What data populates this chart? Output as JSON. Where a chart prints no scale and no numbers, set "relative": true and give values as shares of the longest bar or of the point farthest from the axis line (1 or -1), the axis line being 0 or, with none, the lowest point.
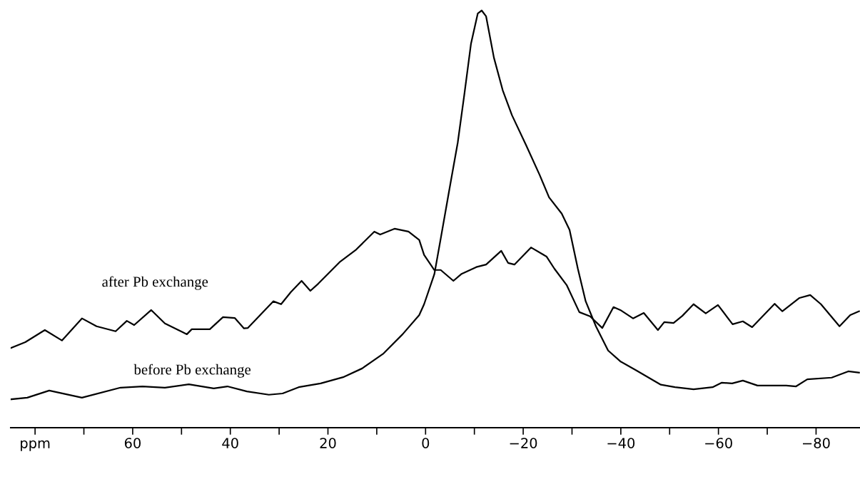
{
  "chart_data": {
    "type": "line",
    "relative": true,
    "tick_labels": "x",
    "grid": false,
    "legend": false,
    "marker": "none",
    "line_style": "solid",
    "xlim": [
      85,
      -89
    ],
    "xticks": [
      {
        "value": 80,
        "label": "ppm"
      },
      {
        "value": 70,
        "label": null
      },
      60,
      {
        "value": 50,
        "label": null
      },
      40,
      {
        "value": 30,
        "label": null
      },
      20,
      {
        "value": 10,
        "label": null
      },
      0,
      {
        "value": -10,
        "label": null
      },
      {
        "value": -20,
        "label": "−20"
      },
      {
        "value": -30,
        "label": null
      },
      {
        "value": -40,
        "label": "−40"
      },
      {
        "value": -50,
        "label": null
      },
      {
        "value": -60,
        "label": "−60"
      },
      {
        "value": -70,
        "label": null
      },
      {
        "value": -80,
        "label": "−80"
      }
    ],
    "series": [
      {
        "name": "after Pb exchange",
        "color": "#000000",
        "x": [
          85.0,
          82.0,
          78.0,
          74.5,
          70.4,
          67.4,
          63.5,
          61.2,
          59.7,
          56.2,
          53.4,
          48.9,
          47.9,
          44.2,
          41.5,
          39.1,
          37.2,
          36.4,
          31.2,
          29.6,
          27.6,
          25.4,
          23.6,
          22.0,
          17.5,
          14.2,
          10.5,
          9.3,
          6.3,
          3.5,
          1.3,
          0.3,
          -1.8,
          -3.1,
          -5.7,
          -7.3,
          -10.4,
          -12.4,
          -15.5,
          -16.9,
          -18.2,
          -21.6,
          -24.8,
          -26.4,
          -28.9,
          -31.5,
          -33.7,
          -36.2,
          -38.5,
          -39.9,
          -42.5,
          -44.7,
          -47.6,
          -48.9,
          -50.8,
          -52.6,
          -54.9,
          -57.4,
          -59.9,
          -62.9,
          -65.0,
          -66.9,
          -71.5,
          -73.1,
          -76.6,
          -78.8,
          -81.0,
          -84.8,
          -87.0,
          -88.8
        ],
        "values": [
          0.191,
          0.205,
          0.234,
          0.209,
          0.262,
          0.243,
          0.231,
          0.256,
          0.246,
          0.282,
          0.25,
          0.224,
          0.236,
          0.236,
          0.265,
          0.263,
          0.238,
          0.239,
          0.303,
          0.296,
          0.325,
          0.352,
          0.328,
          0.345,
          0.398,
          0.427,
          0.47,
          0.463,
          0.477,
          0.47,
          0.45,
          0.414,
          0.378,
          0.378,
          0.352,
          0.368,
          0.385,
          0.391,
          0.424,
          0.395,
          0.391,
          0.432,
          0.41,
          0.381,
          0.342,
          0.277,
          0.267,
          0.239,
          0.289,
          0.282,
          0.262,
          0.275,
          0.234,
          0.253,
          0.251,
          0.268,
          0.296,
          0.274,
          0.294,
          0.248,
          0.255,
          0.241,
          0.297,
          0.279,
          0.311,
          0.318,
          0.296,
          0.243,
          0.27,
          0.279
        ]
      },
      {
        "name": "before Pb exchange",
        "color": "#000000",
        "x": [
          85.0,
          81.6,
          77.1,
          70.4,
          62.5,
          58.0,
          53.4,
          48.5,
          43.4,
          40.6,
          36.6,
          32.1,
          29.3,
          26.0,
          21.5,
          16.9,
          13.0,
          8.6,
          4.7,
          1.3,
          0.3,
          -1.8,
          -3.1,
          -4.8,
          -6.6,
          -7.9,
          -9.3,
          -10.7,
          -11.5,
          -12.4,
          -14.0,
          -15.8,
          -17.7,
          -20.6,
          -23.4,
          -25.3,
          -27.9,
          -29.5,
          -31.2,
          -32.8,
          -34.9,
          -37.4,
          -39.9,
          -43.2,
          -48.2,
          -51.1,
          -54.9,
          -58.8,
          -60.7,
          -62.8,
          -65.0,
          -68.0,
          -73.9,
          -75.9,
          -78.2,
          -83.2,
          -86.6,
          -88.8
        ],
        "values": [
          0.068,
          0.072,
          0.089,
          0.072,
          0.096,
          0.099,
          0.096,
          0.104,
          0.094,
          0.099,
          0.087,
          0.079,
          0.082,
          0.097,
          0.106,
          0.121,
          0.142,
          0.178,
          0.224,
          0.27,
          0.296,
          0.368,
          0.453,
          0.566,
          0.684,
          0.795,
          0.92,
          0.993,
          1.0,
          0.986,
          0.887,
          0.809,
          0.749,
          0.677,
          0.605,
          0.552,
          0.513,
          0.474,
          0.381,
          0.303,
          0.243,
          0.185,
          0.159,
          0.137,
          0.103,
          0.097,
          0.092,
          0.097,
          0.108,
          0.106,
          0.113,
          0.101,
          0.101,
          0.099,
          0.116,
          0.12,
          0.135,
          0.132
        ]
      }
    ]
  }
}
